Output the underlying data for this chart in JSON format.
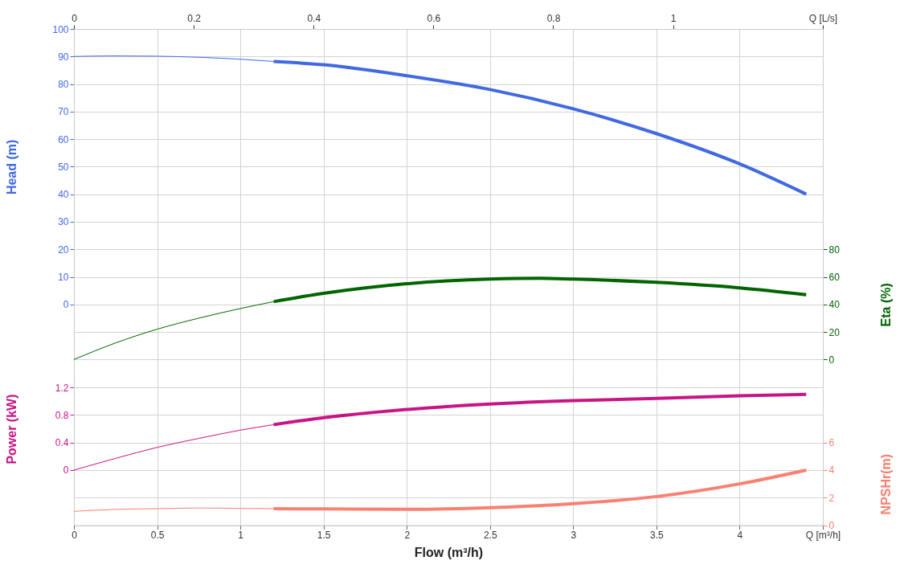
{
  "chart_data": [
    {
      "type": "line",
      "ylabel": "Head (m)",
      "y2label": "Eta (%)",
      "tick_labels": "y",
      "xlim": [
        0,
        4.5
      ],
      "xticks": [
        0,
        0.5,
        1,
        1.5,
        2,
        2.5,
        3,
        3.5,
        4
      ],
      "x2lim": [
        0,
        1.25
      ],
      "x2ticks": [
        0,
        0.2,
        0.4,
        0.6,
        0.8,
        1,
        {
          "value": 1.25,
          "label": "Q [L/s]"
        }
      ],
      "ylim": [
        -25,
        100
      ],
      "yticks": [
        0,
        10,
        20,
        30,
        40,
        50,
        60,
        70,
        80,
        90,
        100
      ],
      "y2lim": [
        -10,
        240
      ],
      "y2ticks": [
        0,
        20,
        40,
        60,
        80
      ],
      "grid": true,
      "series": [
        {
          "color": "#4169e1",
          "axis": "y",
          "x": [
            0,
            0.25,
            0.5,
            0.75,
            1,
            1.2
          ],
          "values": [
            90,
            90.2,
            90.1,
            89.7,
            89,
            88.2
          ]
        },
        {
          "color": "#4169e1",
          "axis": "y",
          "x": [
            1.2,
            1.5,
            2,
            2.5,
            3,
            3.5,
            4,
            4.4
          ],
          "values": [
            88.2,
            87,
            83,
            78,
            71,
            62,
            51,
            40
          ]
        },
        {
          "color": "#006400",
          "axis": "y2",
          "x": [
            0,
            0.25,
            0.5,
            0.75,
            1,
            1.2
          ],
          "values": [
            0,
            12,
            22,
            30,
            37,
            42
          ]
        },
        {
          "color": "#006400",
          "axis": "y2",
          "x": [
            1.2,
            1.5,
            2,
            2.5,
            2.8,
            3,
            3.5,
            4,
            4.4
          ],
          "values": [
            42,
            48,
            55,
            58.4,
            59,
            58.4,
            56,
            52,
            47
          ]
        }
      ]
    },
    {
      "type": "line",
      "xlabel": "Flow (m³/h)",
      "ylabel": "Power (kW)",
      "y2label": "NPSHr(m)",
      "xlim": [
        0,
        4.5
      ],
      "xticks": [
        0,
        0.5,
        1,
        1.5,
        2,
        2.5,
        3,
        3.5,
        4,
        {
          "value": 4.5,
          "label": "Q [m³/h]"
        }
      ],
      "ylim": [
        -0.8,
        1.4
      ],
      "yticks": [
        0,
        0.4,
        0.8,
        1.2
      ],
      "y2lim": [
        0,
        11
      ],
      "y2ticks": [
        0,
        2,
        4,
        6
      ],
      "grid": true,
      "series": [
        {
          "color": "#c71585",
          "axis": "y",
          "x": [
            0,
            0.25,
            0.5,
            0.75,
            1,
            1.2
          ],
          "values": [
            0,
            0.17,
            0.33,
            0.46,
            0.58,
            0.66
          ]
        },
        {
          "color": "#c71585",
          "axis": "y",
          "x": [
            1.2,
            1.5,
            2,
            2.5,
            3,
            3.5,
            4,
            4.4
          ],
          "values": [
            0.66,
            0.76,
            0.88,
            0.96,
            1.01,
            1.04,
            1.08,
            1.1
          ]
        },
        {
          "color": "#fa8072",
          "axis": "y2",
          "x": [
            0,
            0.25,
            0.5,
            0.75,
            1,
            1.2
          ],
          "values": [
            1,
            1.15,
            1.2,
            1.25,
            1.22,
            1.2
          ]
        },
        {
          "color": "#fa8072",
          "axis": "y2",
          "x": [
            1.2,
            1.5,
            2,
            2.5,
            3,
            3.5,
            4,
            4.4
          ],
          "values": [
            1.2,
            1.18,
            1.15,
            1.27,
            1.56,
            2.08,
            3,
            4
          ]
        }
      ]
    }
  ]
}
